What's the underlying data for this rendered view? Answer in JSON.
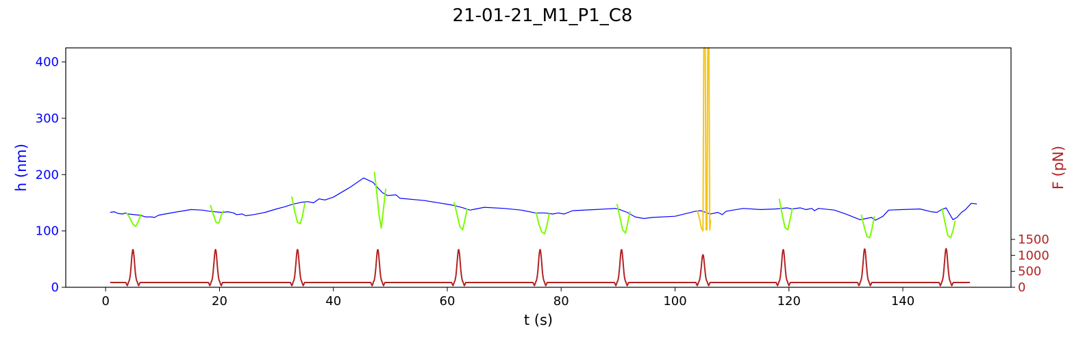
{
  "chart_data": {
    "type": "line",
    "title": "21-01-21_M1_P1_C8",
    "xlabel": "t (s)",
    "ylabel_left": "h (nm)",
    "ylabel_right": "F (pN)",
    "xlim": [
      -7,
      159
    ],
    "ylim_left": [
      0,
      425
    ],
    "ylim_right": [
      0,
      7500
    ],
    "xticks": [
      0,
      20,
      40,
      60,
      80,
      100,
      120,
      140
    ],
    "yticks_left": [
      0,
      100,
      200,
      300,
      400
    ],
    "yticks_right": [
      0,
      500,
      1000,
      1500
    ],
    "grid": false,
    "colors": {
      "height": "#0000ff",
      "compression": "#7cfc00",
      "outlier": "#f5c518",
      "force": "#b22222",
      "left_axis": "#0000ff",
      "right_axis": "#b22222"
    },
    "force_pulses": {
      "baseline": 150,
      "times": [
        4.8,
        19.3,
        33.7,
        47.8,
        62.0,
        76.3,
        90.6,
        104.9,
        119.0,
        133.3,
        147.6
      ],
      "peaks": [
        1180,
        1180,
        1180,
        1180,
        1180,
        1180,
        1180,
        1020,
        1180,
        1200,
        1210
      ],
      "dip": 50,
      "width": 0.55,
      "t_start": 0.8,
      "t_end": 151.8
    },
    "series": [
      {
        "role": "height",
        "color": "#0000ff",
        "points": [
          [
            0.8,
            133
          ],
          [
            1.5,
            134
          ],
          [
            2.2,
            131
          ],
          [
            3.0,
            130
          ],
          [
            3.5,
            132
          ],
          [
            4.0,
            130
          ],
          [
            6.0,
            128
          ],
          [
            7.0,
            125
          ],
          [
            8.0,
            125
          ],
          [
            8.6,
            124
          ],
          [
            9.3,
            128
          ],
          [
            12,
            133
          ],
          [
            15,
            138
          ],
          [
            17,
            137
          ],
          [
            18.2,
            135
          ],
          [
            20.3,
            133
          ],
          [
            21.5,
            134
          ],
          [
            22.5,
            132
          ],
          [
            23.0,
            129
          ],
          [
            24.0,
            130
          ],
          [
            24.6,
            127
          ],
          [
            26,
            129
          ],
          [
            28,
            133
          ],
          [
            30,
            139
          ],
          [
            31.5,
            143
          ],
          [
            32.7,
            147
          ],
          [
            34.5,
            151
          ],
          [
            35.5,
            152
          ],
          [
            36.5,
            150
          ],
          [
            37.5,
            157
          ],
          [
            38.5,
            155
          ],
          [
            40,
            160
          ],
          [
            43,
            178
          ],
          [
            45.3,
            194
          ],
          [
            47.0,
            186
          ],
          [
            47.3,
            182
          ],
          [
            48.6,
            168
          ],
          [
            49.5,
            163
          ],
          [
            51.0,
            164
          ],
          [
            51.7,
            158
          ],
          [
            56,
            154
          ],
          [
            60.2,
            147
          ],
          [
            61.3,
            145
          ],
          [
            62.8,
            141
          ],
          [
            64.0,
            137
          ],
          [
            65.0,
            139
          ],
          [
            66.5,
            142
          ],
          [
            70,
            140
          ],
          [
            73,
            137
          ],
          [
            75.5,
            132
          ],
          [
            77.2,
            132
          ],
          [
            78.5,
            130
          ],
          [
            79.5,
            132
          ],
          [
            80.5,
            130
          ],
          [
            82,
            136
          ],
          [
            86,
            138
          ],
          [
            89.5,
            140
          ],
          [
            90.3,
            138
          ],
          [
            91.6,
            133
          ],
          [
            93.0,
            125
          ],
          [
            94.5,
            122
          ],
          [
            96.0,
            124
          ],
          [
            100,
            126
          ],
          [
            103.6,
            135
          ],
          [
            104.5,
            136
          ],
          [
            106.2,
            130
          ],
          [
            107.5,
            133
          ],
          [
            108.3,
            129
          ],
          [
            109.0,
            135
          ],
          [
            112,
            140
          ],
          [
            115,
            138
          ],
          [
            117.6,
            139
          ],
          [
            119.7,
            141
          ],
          [
            120.5,
            139
          ],
          [
            122.0,
            141
          ],
          [
            123.0,
            138
          ],
          [
            124.0,
            140
          ],
          [
            124.5,
            136
          ],
          [
            125.2,
            140
          ],
          [
            128,
            137
          ],
          [
            130,
            130
          ],
          [
            131.5,
            124
          ],
          [
            132.5,
            120
          ],
          [
            133.0,
            121
          ],
          [
            134.5,
            124
          ],
          [
            135.2,
            119
          ],
          [
            136.5,
            126
          ],
          [
            137.5,
            137
          ],
          [
            140,
            138
          ],
          [
            143,
            139
          ],
          [
            145.0,
            134
          ],
          [
            146.0,
            133
          ],
          [
            146.8,
            138
          ],
          [
            147.6,
            141
          ],
          [
            148.8,
            120
          ],
          [
            149.5,
            124
          ],
          [
            150.3,
            133
          ],
          [
            151.0,
            138
          ],
          [
            152.0,
            149
          ],
          [
            153.0,
            148
          ]
        ]
      },
      {
        "role": "compression",
        "color": "#7cfc00",
        "points": [
          [
            3.7,
            132
          ],
          [
            4.2,
            124
          ],
          [
            4.8,
            112
          ],
          [
            5.3,
            108
          ],
          [
            5.8,
            118
          ],
          [
            6.2,
            130
          ]
        ]
      },
      {
        "role": "compression",
        "color": "#7cfc00",
        "points": [
          [
            18.4,
            146
          ],
          [
            18.9,
            130
          ],
          [
            19.4,
            115
          ],
          [
            19.9,
            114
          ],
          [
            20.3,
            128
          ],
          [
            20.7,
            136
          ]
        ]
      },
      {
        "role": "compression",
        "color": "#7cfc00",
        "points": [
          [
            32.7,
            161
          ],
          [
            33.2,
            135
          ],
          [
            33.7,
            115
          ],
          [
            34.2,
            113
          ],
          [
            34.6,
            128
          ],
          [
            35.0,
            150
          ]
        ]
      },
      {
        "role": "compression",
        "color": "#7cfc00",
        "points": [
          [
            47.2,
            205
          ],
          [
            47.6,
            170
          ],
          [
            48.0,
            130
          ],
          [
            48.4,
            105
          ],
          [
            48.8,
            140
          ],
          [
            49.2,
            175
          ]
        ]
      },
      {
        "role": "compression",
        "color": "#7cfc00",
        "points": [
          [
            61.2,
            151
          ],
          [
            61.7,
            130
          ],
          [
            62.2,
            108
          ],
          [
            62.7,
            102
          ],
          [
            63.1,
            120
          ],
          [
            63.5,
            140
          ]
        ]
      },
      {
        "role": "compression",
        "color": "#7cfc00",
        "points": [
          [
            75.6,
            133
          ],
          [
            76.1,
            112
          ],
          [
            76.6,
            98
          ],
          [
            77.1,
            95
          ],
          [
            77.5,
            110
          ],
          [
            77.9,
            131
          ]
        ]
      },
      {
        "role": "compression",
        "color": "#7cfc00",
        "points": [
          [
            89.8,
            148
          ],
          [
            90.3,
            125
          ],
          [
            90.8,
            102
          ],
          [
            91.3,
            96
          ],
          [
            91.7,
            115
          ],
          [
            92.1,
            135
          ]
        ]
      },
      {
        "role": "outlier",
        "color": "#f5c518",
        "points": [
          [
            103.9,
            137
          ],
          [
            104.3,
            122
          ],
          [
            104.6,
            106
          ],
          [
            104.9,
            100
          ],
          [
            105.05,
            425
          ],
          [
            105.3,
            425
          ],
          [
            105.45,
            102
          ],
          [
            105.6,
            102
          ],
          [
            105.75,
            425
          ],
          [
            105.95,
            425
          ],
          [
            106.1,
            102
          ],
          [
            106.25,
            120
          ]
        ]
      },
      {
        "role": "compression",
        "color": "#7cfc00",
        "points": [
          [
            118.3,
            157
          ],
          [
            118.8,
            130
          ],
          [
            119.3,
            106
          ],
          [
            119.8,
            102
          ],
          [
            120.2,
            120
          ],
          [
            120.6,
            140
          ]
        ]
      },
      {
        "role": "compression",
        "color": "#7cfc00",
        "points": [
          [
            132.7,
            129
          ],
          [
            133.2,
            108
          ],
          [
            133.7,
            90
          ],
          [
            134.2,
            88
          ],
          [
            134.6,
            105
          ],
          [
            135.0,
            126
          ]
        ]
      },
      {
        "role": "compression",
        "color": "#7cfc00",
        "points": [
          [
            146.9,
            140
          ],
          [
            147.4,
            115
          ],
          [
            147.9,
            92
          ],
          [
            148.4,
            88
          ],
          [
            148.8,
            100
          ],
          [
            149.2,
            118
          ]
        ]
      }
    ]
  }
}
